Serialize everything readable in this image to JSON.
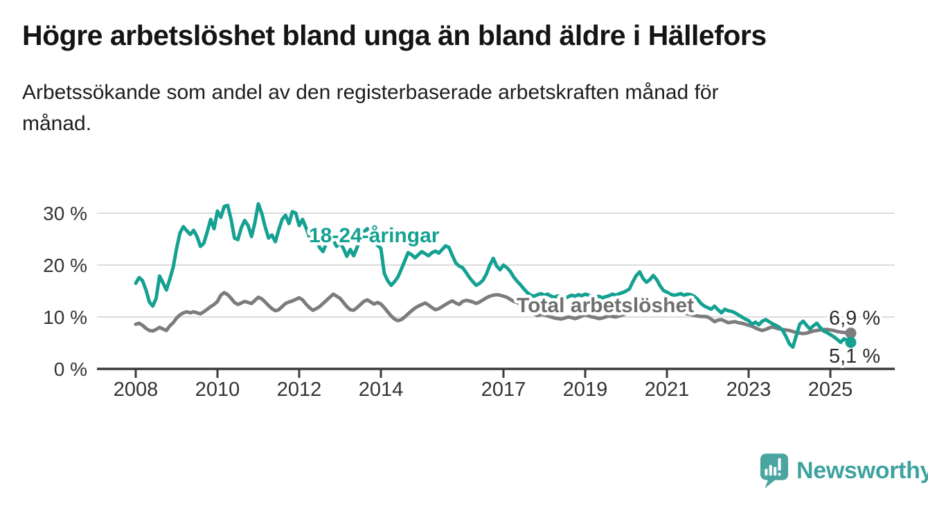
{
  "header": {
    "title": "Högre arbetslöshet bland unga än bland äldre i Hällefors",
    "subtitle_lines": [
      "Arbetssökande som andel av den registerbaserade arbetskraften månad för",
      "månad."
    ]
  },
  "footer": {
    "brand_name": "Newsworthy"
  },
  "colors": {
    "youth_line": "#15a192",
    "total_line": "#7d7b7e",
    "youth_label": "#15a192",
    "total_label": "#6f6f6f",
    "grid": "#dcdcdc",
    "axis": "#3b3b3b",
    "tick_text": "#333333",
    "end_label_text": "#2b2b2b",
    "logo": "#4aa5a1",
    "background": "#ffffff"
  },
  "chart_data": {
    "type": "line",
    "title": "Högre arbetslöshet bland unga än bland äldre i Hällefors",
    "subtitle": "Arbetssökande som andel av den registerbaserade arbetskraften månad för månad.",
    "x_unit": "month",
    "x_start": "2008-01",
    "x_end": "2025-07",
    "grid": "horizontal",
    "legend_position": "inline-labels",
    "y_axis": {
      "unit": "%",
      "range": [
        0,
        33
      ],
      "ticks": [
        {
          "value": 0,
          "label": "0 %"
        },
        {
          "value": 10,
          "label": "10 %"
        },
        {
          "value": 20,
          "label": "20 %"
        },
        {
          "value": 30,
          "label": "30 %"
        }
      ]
    },
    "x_axis": {
      "ticks": [
        {
          "year": 2008,
          "label": "2008"
        },
        {
          "year": 2010,
          "label": "2010"
        },
        {
          "year": 2012,
          "label": "2012"
        },
        {
          "year": 2014,
          "label": "2014"
        },
        {
          "year": 2017,
          "label": "2017"
        },
        {
          "year": 2019,
          "label": "2019"
        },
        {
          "year": 2021,
          "label": "2021"
        },
        {
          "year": 2023,
          "label": "2023"
        },
        {
          "year": 2025,
          "label": "2025"
        }
      ]
    },
    "series": [
      {
        "id": "total",
        "name": "Total arbetslöshet",
        "color": "#7d7b7e",
        "label_color": "#6f6f6f",
        "end_value": 6.9,
        "end_value_label": "6,9 %",
        "values": [
          8.6,
          8.8,
          8.4,
          7.8,
          7.4,
          7.3,
          7.6,
          8.0,
          7.7,
          7.4,
          8.3,
          8.9,
          9.8,
          10.4,
          10.8,
          11.0,
          10.8,
          11.0,
          10.8,
          10.6,
          11.0,
          11.5,
          12.0,
          12.4,
          13.0,
          14.2,
          14.7,
          14.3,
          13.6,
          12.8,
          12.4,
          12.7,
          13.0,
          12.8,
          12.6,
          13.2,
          13.8,
          13.5,
          12.9,
          12.2,
          11.6,
          11.2,
          11.4,
          12.0,
          12.6,
          12.9,
          13.1,
          13.4,
          13.7,
          13.3,
          12.5,
          11.8,
          11.3,
          11.6,
          12.0,
          12.6,
          13.2,
          13.8,
          14.4,
          14.0,
          13.6,
          12.8,
          12.0,
          11.4,
          11.3,
          11.8,
          12.4,
          13.0,
          13.3,
          12.9,
          12.5,
          12.8,
          12.5,
          11.8,
          11.0,
          10.2,
          9.6,
          9.3,
          9.5,
          10.0,
          10.6,
          11.2,
          11.7,
          12.1,
          12.4,
          12.7,
          12.3,
          11.8,
          11.4,
          11.6,
          12.0,
          12.4,
          12.8,
          13.1,
          12.7,
          12.4,
          13.0,
          13.2,
          13.1,
          12.9,
          12.6,
          12.9,
          13.3,
          13.7,
          14.0,
          14.2,
          14.3,
          14.2,
          14.0,
          13.8,
          13.4,
          13.0,
          12.8,
          12.4,
          12.0,
          11.5,
          11.0,
          10.6,
          10.3,
          10.5,
          10.4,
          10.2,
          10.0,
          9.8,
          9.7,
          9.6,
          9.8,
          10.0,
          9.9,
          9.7,
          9.9,
          10.2,
          10.4,
          10.2,
          10.0,
          9.9,
          9.7,
          9.8,
          10.0,
          10.2,
          10.1,
          10.0,
          10.2,
          10.4,
          10.6,
          10.8,
          11.4,
          11.9,
          12.2,
          12.3,
          12.1,
          12.0,
          12.2,
          12.1,
          11.9,
          12.0,
          12.1,
          11.9,
          11.6,
          11.3,
          11.0,
          10.8,
          10.6,
          10.5,
          10.3,
          10.2,
          10.1,
          10.1,
          10.0,
          9.6,
          9.1,
          9.4,
          9.5,
          9.2,
          8.9,
          9.0,
          9.1,
          8.9,
          8.8,
          8.6,
          8.4,
          8.2,
          7.9,
          7.6,
          7.4,
          7.6,
          7.9,
          8.1,
          7.9,
          7.7,
          7.6,
          7.5,
          7.4,
          7.2,
          7.0,
          6.9,
          6.8,
          6.9,
          7.1,
          7.3,
          7.4,
          7.5,
          7.6,
          7.6,
          7.5,
          7.4,
          7.2,
          7.1,
          7.0,
          7.0,
          6.9
        ]
      },
      {
        "id": "youth",
        "name": "18-24-åringar",
        "color": "#15a192",
        "label_color": "#15a192",
        "end_value": 5.1,
        "end_value_label": "5,1 %",
        "values": [
          16.5,
          17.6,
          17.0,
          15.2,
          12.9,
          12.1,
          13.6,
          17.9,
          16.6,
          15.2,
          17.3,
          19.6,
          23.2,
          26.2,
          27.4,
          26.6,
          25.9,
          26.7,
          25.5,
          23.6,
          24.2,
          26.4,
          28.8,
          27.0,
          30.4,
          29.2,
          31.3,
          31.5,
          28.8,
          25.2,
          24.9,
          27.2,
          28.6,
          27.6,
          25.5,
          28.2,
          31.8,
          30.0,
          27.4,
          25.2,
          25.8,
          24.5,
          26.8,
          28.8,
          29.6,
          28.0,
          30.3,
          30.0,
          27.6,
          28.8,
          27.2,
          25.4,
          24.2,
          25.0,
          23.4,
          22.6,
          24.2,
          25.6,
          24.8,
          23.6,
          24.4,
          23.2,
          21.7,
          23.0,
          21.8,
          23.4,
          25.2,
          26.4,
          27.0,
          26.2,
          25.0,
          23.8,
          23.2,
          18.4,
          17.0,
          16.1,
          16.8,
          17.7,
          19.2,
          20.8,
          22.4,
          22.0,
          21.4,
          22.0,
          22.6,
          22.2,
          21.8,
          22.4,
          22.7,
          22.3,
          23.0,
          23.7,
          23.4,
          21.8,
          20.4,
          19.8,
          19.5,
          18.6,
          17.6,
          16.8,
          16.1,
          16.5,
          17.1,
          18.3,
          20.0,
          21.3,
          19.8,
          19.1,
          20.0,
          19.5,
          18.8,
          17.7,
          16.9,
          16.2,
          15.4,
          14.7,
          14.2,
          14.0,
          14.3,
          14.5,
          14.2,
          14.4,
          14.0,
          13.8,
          14.1,
          13.9,
          13.6,
          13.9,
          14.2,
          14.0,
          14.3,
          14.1,
          14.4,
          14.2,
          14.0,
          13.8,
          14.0,
          13.7,
          13.9,
          14.1,
          14.4,
          14.2,
          14.5,
          14.7,
          15.0,
          15.4,
          16.8,
          18.0,
          18.7,
          17.4,
          16.7,
          17.2,
          18.0,
          17.2,
          16.0,
          15.1,
          14.8,
          14.4,
          14.2,
          14.3,
          14.5,
          14.2,
          14.4,
          14.3,
          14.0,
          13.4,
          12.6,
          12.1,
          11.8,
          11.5,
          12.1,
          11.4,
          10.8,
          11.5,
          11.2,
          11.1,
          10.8,
          10.4,
          10.0,
          9.6,
          9.3,
          8.6,
          9.0,
          8.5,
          9.2,
          9.5,
          9.1,
          8.7,
          8.4,
          8.0,
          7.4,
          6.2,
          4.8,
          4.2,
          6.4,
          8.6,
          9.2,
          8.4,
          7.7,
          8.3,
          8.8,
          8.0,
          7.3,
          7.0,
          6.6,
          6.2,
          5.7,
          5.1,
          5.8,
          5.5,
          5.1
        ]
      }
    ]
  }
}
